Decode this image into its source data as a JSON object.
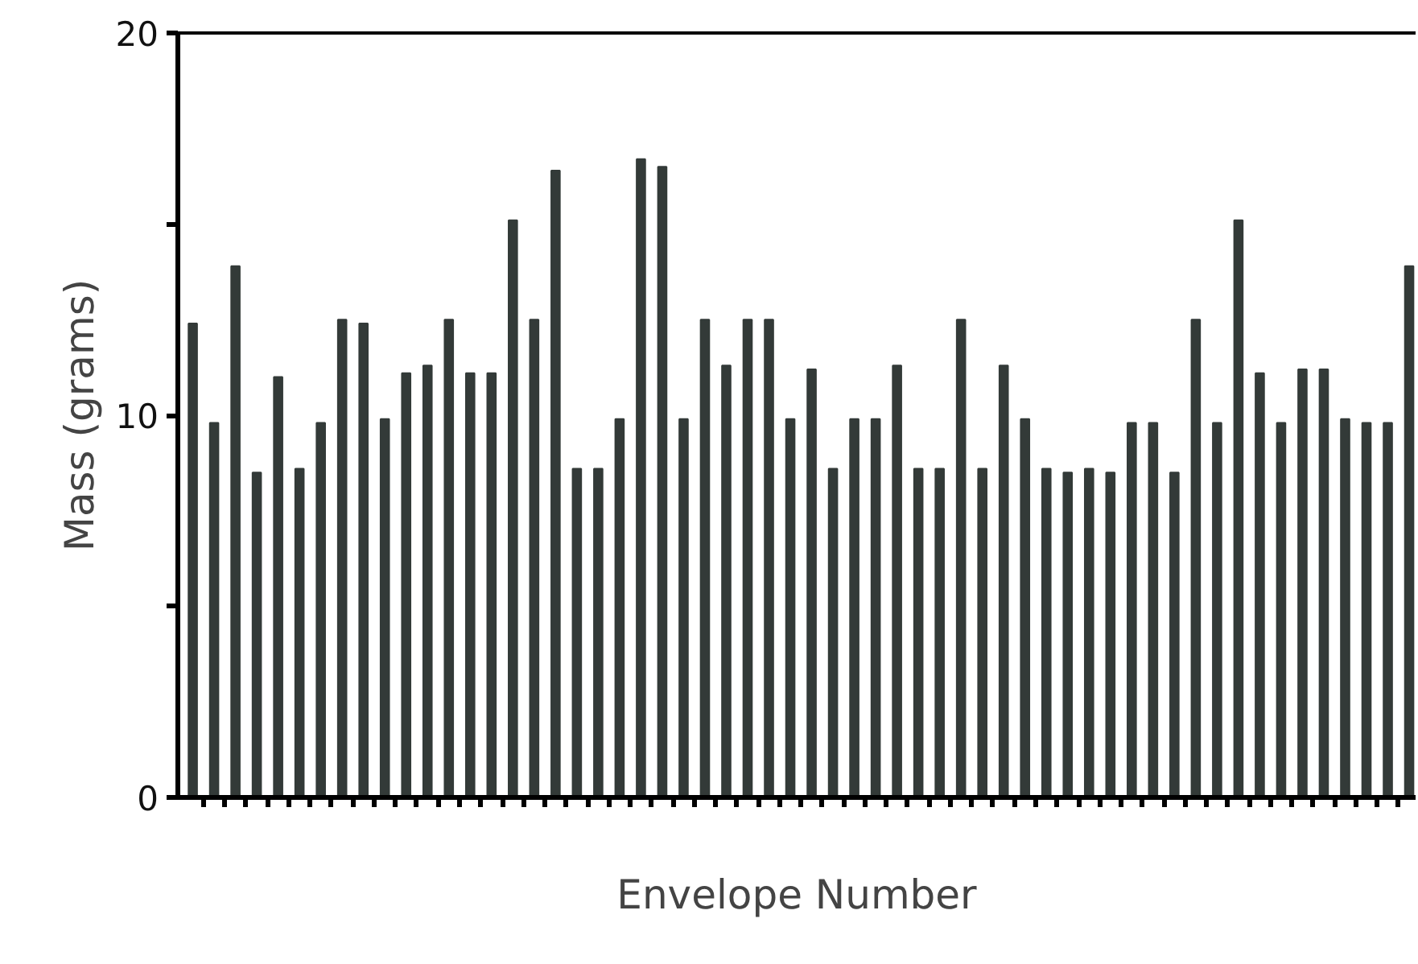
{
  "chart_data": {
    "type": "bar",
    "xlabel": "Envelope Number",
    "ylabel": "Mass (grams)",
    "categories": [
      null,
      null,
      null,
      null,
      null,
      null,
      null,
      null,
      null,
      null,
      null,
      null,
      null,
      null,
      null,
      null,
      null,
      null,
      null,
      null,
      null,
      null,
      null,
      null,
      null,
      null,
      null,
      null,
      null,
      null,
      null,
      null,
      null,
      null,
      null,
      null,
      null,
      null,
      null,
      null,
      null,
      null,
      null,
      null,
      null,
      null,
      null,
      null,
      null,
      null,
      null,
      null,
      null,
      null,
      null,
      null,
      null,
      null
    ],
    "values": [
      12.4,
      9.8,
      13.9,
      8.5,
      11.0,
      8.6,
      9.8,
      12.5,
      12.4,
      9.9,
      11.1,
      11.3,
      12.5,
      11.1,
      11.1,
      15.1,
      12.5,
      16.4,
      8.6,
      8.6,
      9.9,
      16.7,
      16.5,
      9.9,
      12.5,
      11.3,
      12.5,
      12.5,
      9.9,
      11.2,
      8.6,
      9.9,
      9.9,
      11.3,
      8.6,
      8.6,
      12.5,
      8.6,
      11.3,
      9.9,
      8.6,
      8.5,
      8.6,
      8.5,
      9.8,
      9.8,
      8.5,
      12.5,
      9.8,
      15.1,
      11.1,
      9.8,
      11.2,
      11.2,
      9.9,
      9.8,
      9.8,
      13.9
    ],
    "color": "#333a38",
    "ylim": [
      0,
      20
    ],
    "yticks": [
      0,
      {
        "value": 5,
        "label": null
      },
      10,
      {
        "value": 15,
        "label": null
      },
      20
    ],
    "grid": false
  }
}
